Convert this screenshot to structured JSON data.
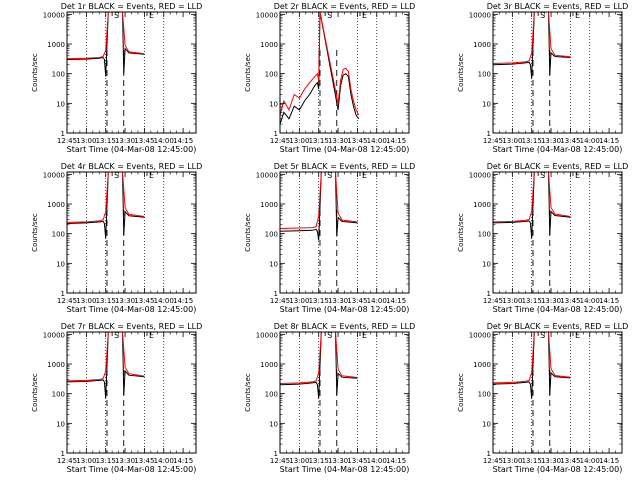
{
  "colors": {
    "events": "#000000",
    "lld": "#ff0000",
    "axis": "#000000"
  },
  "common": {
    "xlabel": "Start Time (04-Mar-08 12:45:00)",
    "ylabel": "Counts/sec",
    "xticks": [
      "12:45",
      "13:00",
      "13:15",
      "13:30",
      "13:45",
      "14:00",
      "14:15"
    ],
    "yticks": [
      "1",
      "10",
      "100",
      "1000",
      "10000"
    ],
    "dotted_lines_at": [
      "13:00",
      "13:15",
      "13:45",
      "14:00"
    ],
    "dashed_lines_at": [
      "13:16",
      "13:29"
    ],
    "markers": [
      {
        "label": "S",
        "at": "13:20"
      },
      {
        "label": "E",
        "at": "13:47"
      }
    ]
  },
  "chart_data": [
    {
      "type": "line",
      "title": "Det 1r BLACK = Events, RED = LLD",
      "ylim": [
        1,
        12000
      ],
      "log_y": true,
      "grid": false,
      "series": [
        {
          "name": "Events",
          "x": [
            "12:45",
            "13:00",
            "13:10",
            "13:13",
            "13:14",
            "13:15",
            "13:17",
            "13:28",
            "13:29",
            "13:30",
            "13:33",
            "13:45"
          ],
          "values": [
            300,
            310,
            330,
            350,
            300,
            80,
            12000,
            12000,
            100,
            700,
            500,
            450
          ]
        },
        {
          "name": "LLD",
          "x": [
            "12:45",
            "13:00",
            "13:10",
            "13:13",
            "13:15",
            "13:17",
            "13:28",
            "13:30",
            "13:33",
            "13:45"
          ],
          "values": [
            320,
            330,
            350,
            380,
            600,
            12000,
            12000,
            900,
            550,
            470
          ]
        }
      ]
    },
    {
      "type": "line",
      "title": "Det 2r BLACK = Events, RED = LLD",
      "ylim": [
        1,
        12000
      ],
      "log_y": true,
      "grid": false,
      "series": [
        {
          "name": "Events",
          "x": [
            "12:45",
            "12:48",
            "12:52",
            "12:56",
            "13:00",
            "13:04",
            "13:08",
            "13:12",
            "13:14",
            "13:15",
            "13:16",
            "13:30",
            "13:32",
            "13:34",
            "13:36",
            "13:38",
            "13:40",
            "13:42",
            "13:44",
            "13:46"
          ],
          "values": [
            2,
            5,
            3,
            8,
            6,
            12,
            20,
            40,
            50,
            30,
            12000,
            6,
            40,
            90,
            100,
            80,
            20,
            8,
            4,
            3
          ]
        },
        {
          "name": "LLD",
          "x": [
            "12:45",
            "12:48",
            "12:52",
            "12:56",
            "13:00",
            "13:04",
            "13:08",
            "13:12",
            "13:14",
            "13:15",
            "13:16",
            "13:30",
            "13:32",
            "13:34",
            "13:36",
            "13:38",
            "13:40",
            "13:42",
            "13:44",
            "13:46"
          ],
          "values": [
            4,
            12,
            6,
            20,
            15,
            30,
            50,
            80,
            100,
            60,
            12000,
            10,
            60,
            140,
            150,
            120,
            30,
            12,
            6,
            4
          ]
        }
      ]
    },
    {
      "type": "line",
      "title": "Det 3r BLACK = Events, RED = LLD",
      "ylim": [
        1,
        12000
      ],
      "log_y": true,
      "grid": false,
      "series": [
        {
          "name": "Events",
          "x": [
            "12:45",
            "13:00",
            "13:10",
            "13:13",
            "13:14",
            "13:15",
            "13:17",
            "13:28",
            "13:29",
            "13:30",
            "13:33",
            "13:45"
          ],
          "values": [
            200,
            210,
            230,
            240,
            200,
            70,
            12000,
            12000,
            90,
            500,
            380,
            350
          ]
        },
        {
          "name": "LLD",
          "x": [
            "12:45",
            "13:00",
            "13:10",
            "13:13",
            "13:15",
            "13:17",
            "13:28",
            "13:30",
            "13:33",
            "13:45"
          ],
          "values": [
            220,
            230,
            250,
            270,
            500,
            12000,
            12000,
            700,
            420,
            370
          ]
        }
      ]
    },
    {
      "type": "line",
      "title": "Det 4r BLACK = Events, RED = LLD",
      "ylim": [
        1,
        12000
      ],
      "log_y": true,
      "grid": false,
      "series": [
        {
          "name": "Events",
          "x": [
            "12:45",
            "13:00",
            "13:10",
            "13:13",
            "13:14",
            "13:15",
            "13:17",
            "13:28",
            "13:29",
            "13:30",
            "13:33",
            "13:45"
          ],
          "values": [
            220,
            230,
            250,
            260,
            220,
            70,
            12000,
            12000,
            90,
            550,
            400,
            360
          ]
        },
        {
          "name": "LLD",
          "x": [
            "12:45",
            "13:00",
            "13:10",
            "13:13",
            "13:15",
            "13:17",
            "13:28",
            "13:30",
            "13:33",
            "13:45"
          ],
          "values": [
            240,
            250,
            270,
            290,
            550,
            12000,
            12000,
            750,
            450,
            380
          ]
        }
      ]
    },
    {
      "type": "line",
      "title": "Det 5r BLACK = Events, RED = LLD",
      "ylim": [
        1,
        12000
      ],
      "log_y": true,
      "grid": false,
      "series": [
        {
          "name": "Events",
          "x": [
            "12:45",
            "13:00",
            "13:10",
            "13:13",
            "13:14",
            "13:15",
            "13:17",
            "13:28",
            "13:29",
            "13:30",
            "13:33",
            "13:45"
          ],
          "values": [
            120,
            125,
            130,
            140,
            120,
            60,
            12000,
            12000,
            80,
            350,
            260,
            230
          ]
        },
        {
          "name": "LLD",
          "x": [
            "12:45",
            "13:00",
            "13:10",
            "13:13",
            "13:15",
            "13:17",
            "13:28",
            "13:30",
            "13:33",
            "13:45"
          ],
          "values": [
            150,
            155,
            160,
            170,
            400,
            12000,
            12000,
            500,
            290,
            250
          ]
        }
      ]
    },
    {
      "type": "line",
      "title": "Det 6r BLACK = Events, RED = LLD",
      "ylim": [
        1,
        12000
      ],
      "log_y": true,
      "grid": false,
      "series": [
        {
          "name": "Events",
          "x": [
            "12:45",
            "13:00",
            "13:10",
            "13:13",
            "13:14",
            "13:15",
            "13:17",
            "13:28",
            "13:29",
            "13:30",
            "13:33",
            "13:45"
          ],
          "values": [
            230,
            240,
            260,
            270,
            230,
            70,
            12000,
            12000,
            90,
            560,
            410,
            360
          ]
        },
        {
          "name": "LLD",
          "x": [
            "12:45",
            "13:00",
            "13:10",
            "13:13",
            "13:15",
            "13:17",
            "13:28",
            "13:30",
            "13:33",
            "13:45"
          ],
          "values": [
            250,
            260,
            280,
            300,
            560,
            12000,
            12000,
            760,
            460,
            380
          ]
        }
      ]
    },
    {
      "type": "line",
      "title": "Det 7r BLACK = Events, RED = LLD",
      "ylim": [
        1,
        12000
      ],
      "log_y": true,
      "grid": false,
      "series": [
        {
          "name": "Events",
          "x": [
            "12:45",
            "13:00",
            "13:10",
            "13:13",
            "13:14",
            "13:15",
            "13:17",
            "13:28",
            "13:29",
            "13:30",
            "13:33",
            "13:45"
          ],
          "values": [
            250,
            260,
            280,
            290,
            250,
            70,
            12000,
            12000,
            90,
            580,
            420,
            370
          ]
        },
        {
          "name": "LLD",
          "x": [
            "12:45",
            "13:00",
            "13:10",
            "13:13",
            "13:15",
            "13:17",
            "13:28",
            "13:30",
            "13:33",
            "13:45"
          ],
          "values": [
            270,
            280,
            300,
            320,
            580,
            12000,
            12000,
            780,
            470,
            390
          ]
        }
      ]
    },
    {
      "type": "line",
      "title": "Det 8r BLACK = Events, RED = LLD",
      "ylim": [
        1,
        12000
      ],
      "log_y": true,
      "grid": false,
      "series": [
        {
          "name": "Events",
          "x": [
            "12:45",
            "13:00",
            "13:10",
            "13:13",
            "13:14",
            "13:15",
            "13:17",
            "13:28",
            "13:29",
            "13:30",
            "13:33",
            "13:45"
          ],
          "values": [
            200,
            210,
            230,
            240,
            200,
            70,
            12000,
            12000,
            90,
            480,
            360,
            330
          ]
        },
        {
          "name": "LLD",
          "x": [
            "12:45",
            "13:00",
            "13:10",
            "13:13",
            "13:15",
            "13:17",
            "13:28",
            "13:30",
            "13:33",
            "13:45"
          ],
          "values": [
            220,
            230,
            250,
            270,
            500,
            12000,
            12000,
            680,
            400,
            350
          ]
        }
      ]
    },
    {
      "type": "line",
      "title": "Det 9r BLACK = Events, RED = LLD",
      "ylim": [
        1,
        12000
      ],
      "log_y": true,
      "grid": false,
      "series": [
        {
          "name": "Events",
          "x": [
            "12:45",
            "13:00",
            "13:10",
            "13:13",
            "13:14",
            "13:15",
            "13:17",
            "13:28",
            "13:29",
            "13:30",
            "13:33",
            "13:45"
          ],
          "values": [
            210,
            220,
            240,
            250,
            210,
            70,
            12000,
            12000,
            90,
            500,
            370,
            340
          ]
        },
        {
          "name": "LLD",
          "x": [
            "12:45",
            "13:00",
            "13:10",
            "13:13",
            "13:15",
            "13:17",
            "13:28",
            "13:30",
            "13:33",
            "13:45"
          ],
          "values": [
            230,
            240,
            260,
            280,
            520,
            12000,
            12000,
            700,
            410,
            360
          ]
        }
      ]
    }
  ]
}
